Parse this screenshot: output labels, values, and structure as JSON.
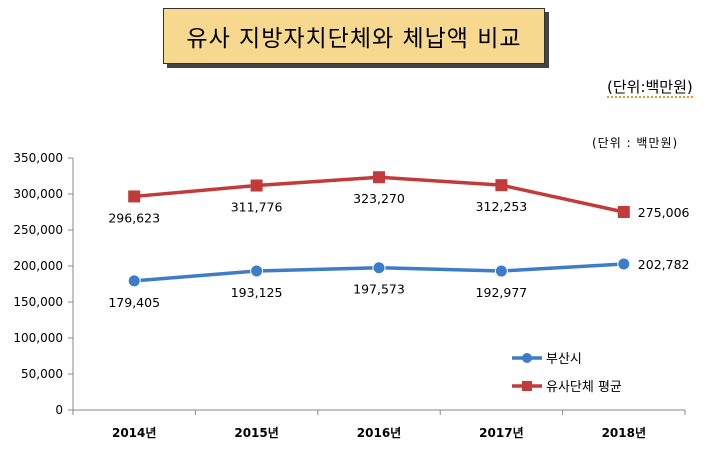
{
  "title": "유사 지방자치단체와 체납액 비교",
  "unit_top": "(단위:백만원)",
  "colors": {
    "title_bg": "#f6d98e",
    "series_busan": "#3d7cc9",
    "series_avg": "#c23b3b"
  },
  "chart_data": {
    "type": "line",
    "unit_label": "(단위 : 백만원)",
    "categories": [
      "2014년",
      "2015년",
      "2016년",
      "2017년",
      "2018년"
    ],
    "yticks": [
      "350,000",
      "300,000",
      "250,000",
      "200,000",
      "150,000",
      "100,000",
      "50,000",
      "0"
    ],
    "ylim": [
      0,
      350000
    ],
    "grid": false,
    "legend_position": "bottom-right",
    "series": [
      {
        "name": "부산시",
        "color": "#3d7cc9",
        "marker": "circle",
        "values": [
          179405,
          193125,
          197573,
          192977,
          202782
        ],
        "labels": [
          "179,405",
          "193,125",
          "197,573",
          "192,977",
          "202,782"
        ]
      },
      {
        "name": "유사단체 평균",
        "color": "#c23b3b",
        "marker": "square",
        "values": [
          296623,
          311776,
          323270,
          312253,
          275006
        ],
        "labels": [
          "296,623",
          "311,776",
          "323,270",
          "312,253",
          "275,006"
        ]
      }
    ]
  }
}
